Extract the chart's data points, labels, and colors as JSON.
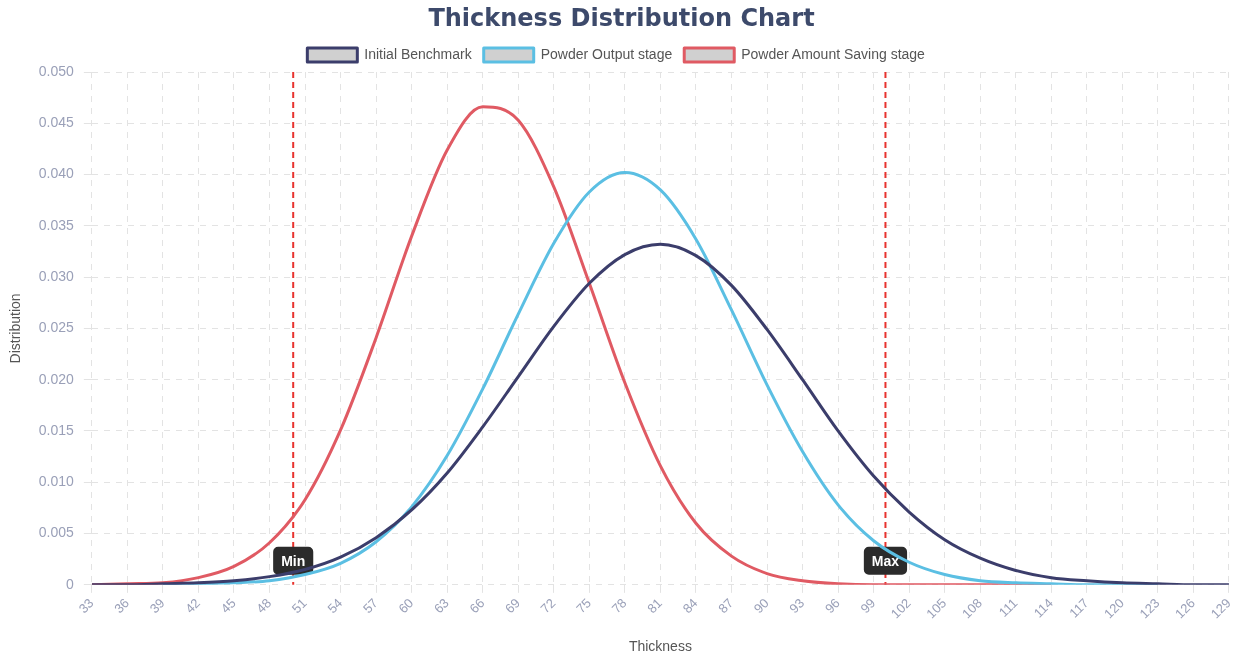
{
  "chart_data": {
    "type": "line",
    "title": "Thickness Distribution Chart",
    "xlabel": "Thickness",
    "ylabel": "Distribution",
    "x": [
      33,
      36,
      39,
      42,
      45,
      48,
      51,
      54,
      57,
      60,
      63,
      66,
      69,
      72,
      75,
      78,
      81,
      84,
      87,
      90,
      93,
      96,
      99,
      102,
      105,
      108,
      111,
      114,
      117,
      120,
      123,
      126,
      129
    ],
    "series": [
      {
        "name": "Initial Benchmark",
        "color": "#3b3d6b",
        "values": [
          0,
          0,
          0.0001,
          0.0002,
          0.0004,
          0.0008,
          0.0015,
          0.0027,
          0.0046,
          0.0073,
          0.0109,
          0.0154,
          0.0203,
          0.0252,
          0.0294,
          0.0322,
          0.0332,
          0.0321,
          0.0292,
          0.0249,
          0.02,
          0.015,
          0.0106,
          0.0071,
          0.0044,
          0.0026,
          0.0014,
          0.0007,
          0.0004,
          0.0002,
          0.0001,
          0,
          0
        ]
      },
      {
        "name": "Powder Output stage",
        "color": "#5bbfe3",
        "values": [
          null,
          null,
          0,
          0.0001,
          0.0002,
          0.0004,
          0.001,
          0.0021,
          0.0042,
          0.0076,
          0.0126,
          0.0191,
          0.0264,
          0.0333,
          0.0383,
          0.0402,
          0.0385,
          0.0337,
          0.0268,
          0.0195,
          0.013,
          0.0078,
          0.0043,
          0.0022,
          0.001,
          0.0004,
          0.0002,
          0.0001,
          0,
          0,
          0,
          null,
          null
        ]
      },
      {
        "name": "Powder Amount Saving stage",
        "color": "#e05a63",
        "values": [
          0,
          0.0001,
          0.0002,
          0.0007,
          0.0018,
          0.0041,
          0.0083,
          0.0151,
          0.0241,
          0.034,
          0.0424,
          0.0466,
          0.0453,
          0.0388,
          0.0294,
          0.0197,
          0.0116,
          0.006,
          0.0028,
          0.0011,
          0.0004,
          0.0001,
          0,
          0,
          0,
          0,
          0,
          0,
          null,
          null,
          null,
          null,
          null
        ]
      }
    ],
    "xlim": [
      33,
      129
    ],
    "xticks": [
      33,
      36,
      39,
      42,
      45,
      48,
      51,
      54,
      57,
      60,
      63,
      66,
      69,
      72,
      75,
      78,
      81,
      84,
      87,
      90,
      93,
      96,
      99,
      102,
      105,
      108,
      111,
      114,
      117,
      120,
      123,
      126,
      129
    ],
    "ylim": [
      0,
      0.05
    ],
    "yticks": [
      0,
      0.005,
      {
        "value": 0.01,
        "label": "0.010"
      },
      0.015,
      {
        "value": 0.02,
        "label": "0.020"
      },
      0.025,
      {
        "value": 0.03,
        "label": "0.030"
      },
      0.035,
      {
        "value": 0.04,
        "label": "0.040"
      },
      0.045,
      {
        "value": 0.05,
        "label": "0.050"
      }
    ],
    "ref_lines": [
      {
        "axis": "x",
        "value": 50,
        "label": "Min",
        "color": "#e8332e",
        "line_style": "dashed"
      },
      {
        "axis": "x",
        "value": 100,
        "label": "Max",
        "color": "#e8332e",
        "line_style": "dashed"
      }
    ],
    "grid": true,
    "legend": "top",
    "marker": "none",
    "line_style": "solid"
  }
}
